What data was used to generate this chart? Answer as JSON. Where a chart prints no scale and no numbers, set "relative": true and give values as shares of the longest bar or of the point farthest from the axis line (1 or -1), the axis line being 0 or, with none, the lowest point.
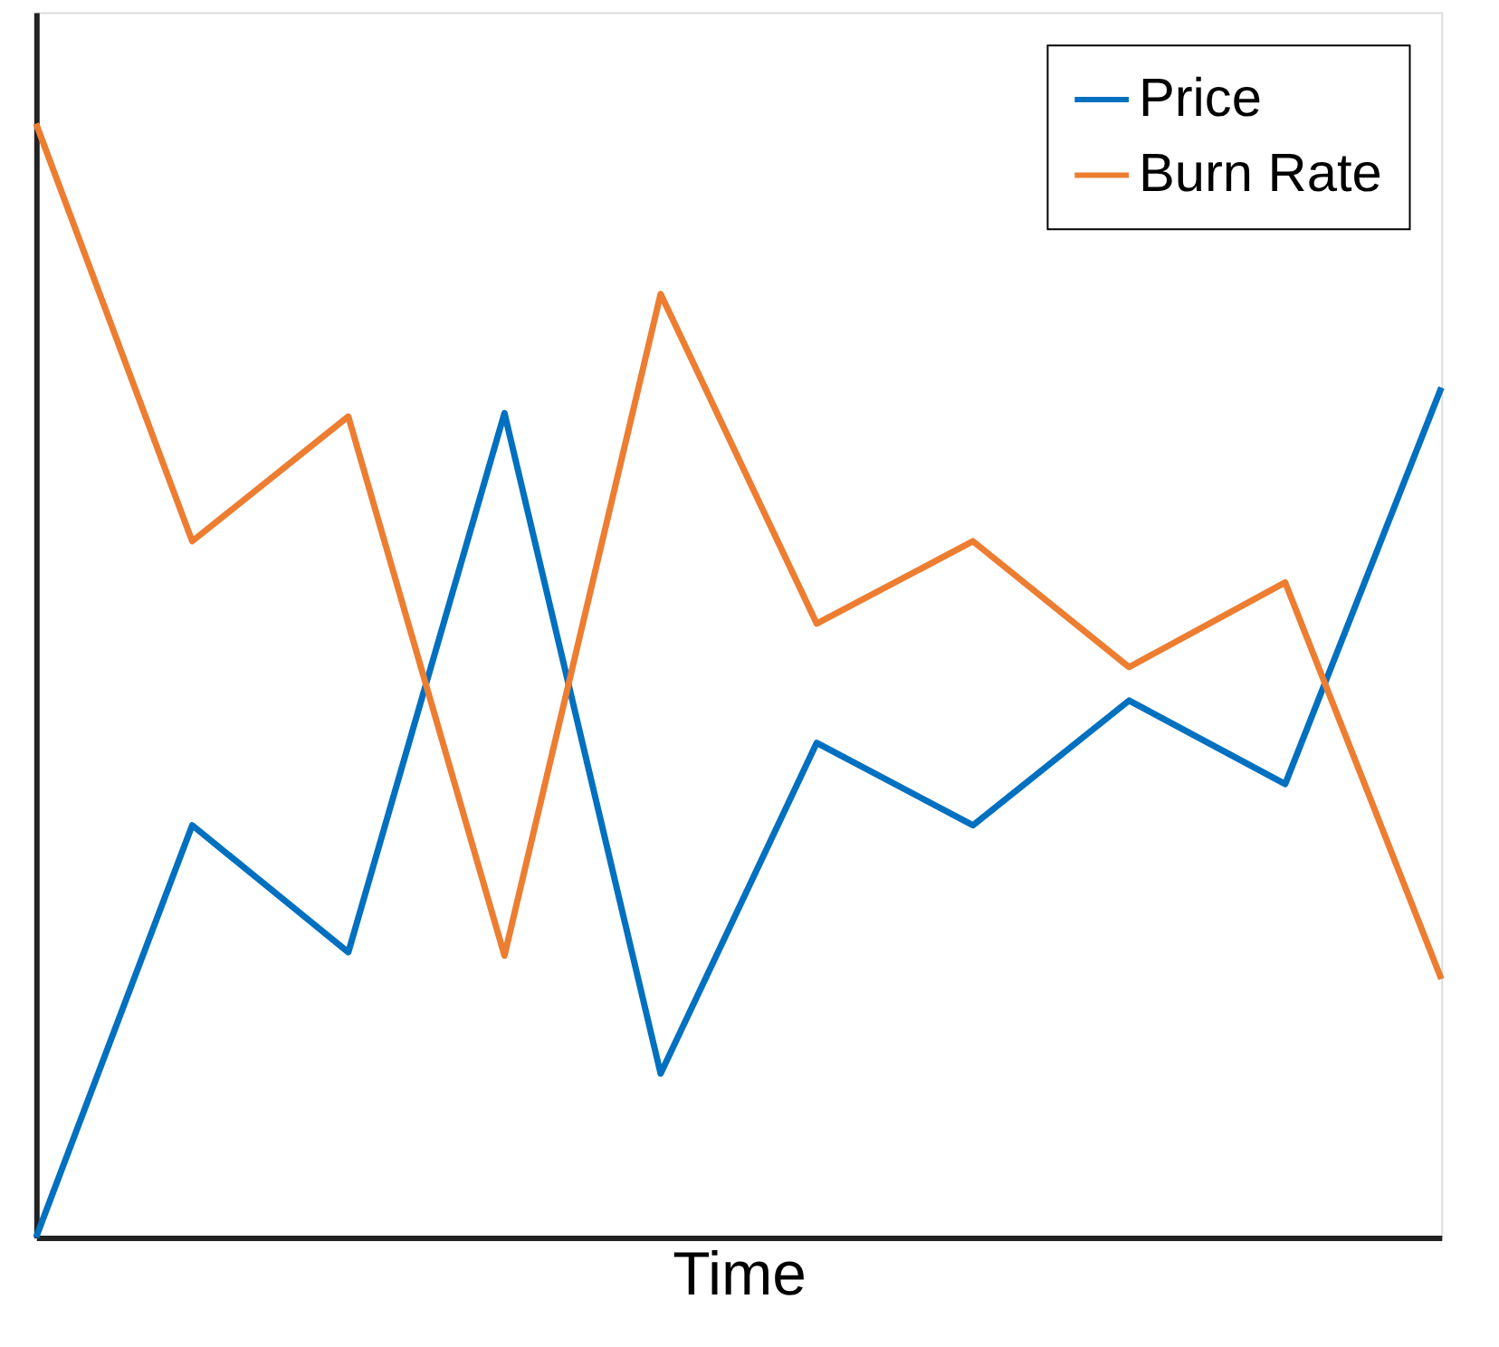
{
  "chart_data": {
    "type": "line",
    "relative": true,
    "xlabel": "Time",
    "legend": "top right",
    "marker": "none",
    "line_style": "solid",
    "categories": [
      null,
      null,
      null,
      null,
      null,
      null,
      null,
      null,
      null,
      null
    ],
    "series": [
      {
        "name": "Price",
        "color": "#0070c0",
        "values": [
          0,
          0.37,
          0.256,
          0.74,
          0.147,
          0.444,
          0.37,
          0.482,
          0.407,
          0.763
        ]
      },
      {
        "name": "Burn Rate",
        "color": "#ed7d31",
        "values": [
          1,
          0.625,
          0.737,
          0.253,
          0.847,
          0.551,
          0.625,
          0.512,
          0.588,
          0.232
        ]
      }
    ]
  }
}
